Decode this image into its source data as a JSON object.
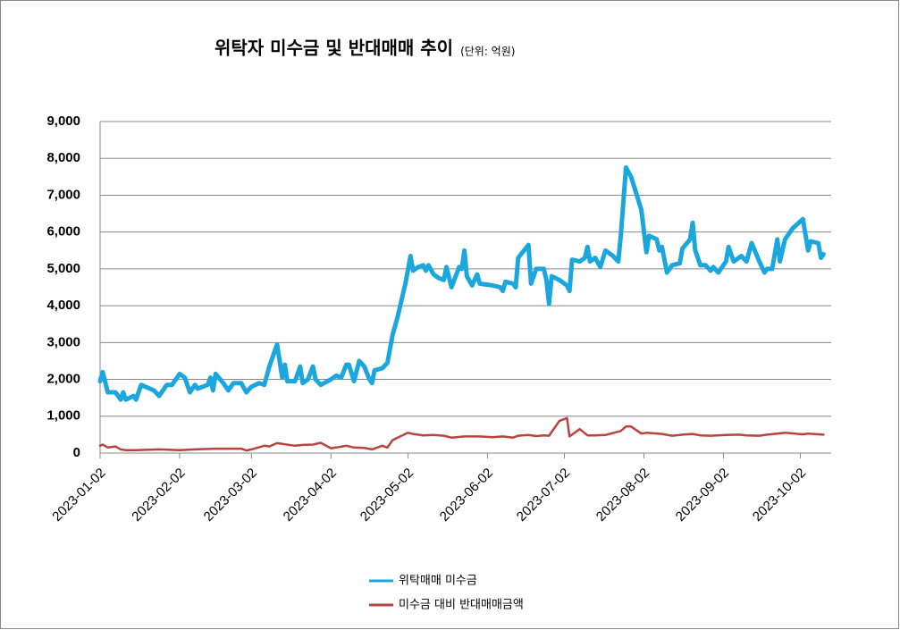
{
  "chart_data": {
    "type": "line",
    "title": "위탁자 미수금 및 반대매매 추이",
    "subtitle": "(단위: 억원)",
    "xlim": [
      "2023-01-02",
      "2023-10-14"
    ],
    "xticks": [
      "2023-01-02",
      "2023-02-02",
      "2023-03-02",
      "2023-04-02",
      "2023-05-02",
      "2023-06-02",
      "2023-07-02",
      "2023-08-02",
      "2023-09-02",
      "2023-10-02"
    ],
    "ylim": [
      0,
      9000
    ],
    "yticks": [
      0,
      {
        "value": 1000,
        "label": "1,000"
      },
      {
        "value": 2000,
        "label": "2,000"
      },
      {
        "value": 3000,
        "label": "3,000"
      },
      {
        "value": 4000,
        "label": "4,000"
      },
      {
        "value": 5000,
        "label": "5,000"
      },
      {
        "value": 6000,
        "label": "6,000"
      },
      {
        "value": 7000,
        "label": "7,000"
      },
      {
        "value": 8000,
        "label": "8,000"
      },
      {
        "value": 9000,
        "label": "9,000"
      }
    ],
    "grid": true,
    "legend": "bottom",
    "series": [
      {
        "name": "위탁매매 미수금",
        "color": "#1ba7de",
        "width": 5,
        "x": [
          "2023-01-02",
          "2023-01-03",
          "2023-01-05",
          "2023-01-08",
          "2023-01-10",
          "2023-01-11",
          "2023-01-12",
          "2023-01-15",
          "2023-01-16",
          "2023-01-18",
          "2023-01-23",
          "2023-01-25",
          "2023-01-28",
          "2023-01-30",
          "2023-02-02",
          "2023-02-04",
          "2023-02-06",
          "2023-02-08",
          "2023-02-09",
          "2023-02-13",
          "2023-02-14",
          "2023-02-15",
          "2023-02-16",
          "2023-02-19",
          "2023-02-21",
          "2023-02-23",
          "2023-02-26",
          "2023-02-28",
          "2023-03-02",
          "2023-03-05",
          "2023-03-07",
          "2023-03-09",
          "2023-03-12",
          "2023-03-14",
          "2023-03-15",
          "2023-03-16",
          "2023-03-19",
          "2023-03-21",
          "2023-03-22",
          "2023-03-24",
          "2023-03-26",
          "2023-03-27",
          "2023-03-29",
          "2023-04-02",
          "2023-04-04",
          "2023-04-06",
          "2023-04-08",
          "2023-04-09",
          "2023-04-11",
          "2023-04-13",
          "2023-04-15",
          "2023-04-17",
          "2023-04-18",
          "2023-04-19",
          "2023-04-22",
          "2023-04-24",
          "2023-04-26",
          "2023-04-28",
          "2023-04-30",
          "2023-05-01",
          "2023-05-03",
          "2023-05-04",
          "2023-05-06",
          "2023-05-08",
          "2023-05-09",
          "2023-05-10",
          "2023-05-12",
          "2023-05-14",
          "2023-05-16",
          "2023-05-17",
          "2023-05-19",
          "2023-05-22",
          "2023-05-23",
          "2023-05-24",
          "2023-05-25",
          "2023-05-27",
          "2023-05-29",
          "2023-05-30",
          "2023-06-04",
          "2023-06-07",
          "2023-06-08",
          "2023-06-09",
          "2023-06-12",
          "2023-06-13",
          "2023-06-14",
          "2023-06-18",
          "2023-06-19",
          "2023-06-21",
          "2023-06-24",
          "2023-06-25",
          "2023-06-26",
          "2023-06-27",
          "2023-06-30",
          "2023-07-03",
          "2023-07-04",
          "2023-07-05",
          "2023-07-08",
          "2023-07-10",
          "2023-07-11",
          "2023-07-12",
          "2023-07-14",
          "2023-07-16",
          "2023-07-18",
          "2023-07-21",
          "2023-07-23",
          "2023-07-24",
          "2023-07-26",
          "2023-07-28",
          "2023-08-01",
          "2023-08-03",
          "2023-08-04",
          "2023-08-07",
          "2023-08-08",
          "2023-08-09",
          "2023-08-11",
          "2023-08-13",
          "2023-08-16",
          "2023-08-17",
          "2023-08-20",
          "2023-08-21",
          "2023-08-22",
          "2023-08-24",
          "2023-08-26",
          "2023-08-28",
          "2023-08-29",
          "2023-08-31",
          "2023-09-03",
          "2023-09-04",
          "2023-09-06",
          "2023-09-08",
          "2023-09-09",
          "2023-09-11",
          "2023-09-13",
          "2023-09-16",
          "2023-09-18",
          "2023-09-19",
          "2023-09-21",
          "2023-09-23",
          "2023-09-24",
          "2023-09-26",
          "2023-09-29",
          "2023-10-03",
          "2023-10-05",
          "2023-10-06",
          "2023-10-09",
          "2023-10-10",
          "2023-10-11"
        ],
        "values": [
          1950,
          2200,
          1650,
          1650,
          1450,
          1650,
          1450,
          1550,
          1450,
          1850,
          1700,
          1550,
          1850,
          1850,
          2150,
          2050,
          1650,
          1850,
          1750,
          1850,
          2050,
          1700,
          2150,
          1900,
          1700,
          1900,
          1900,
          1650,
          1800,
          1900,
          1850,
          2350,
          2950,
          2050,
          2400,
          1950,
          1950,
          2350,
          1900,
          2000,
          2350,
          2000,
          1850,
          2000,
          2100,
          2050,
          2400,
          2400,
          1950,
          2500,
          2350,
          2000,
          1900,
          2250,
          2300,
          2450,
          3200,
          3700,
          4300,
          4600,
          5350,
          4950,
          5050,
          5100,
          4950,
          5100,
          4850,
          4750,
          4700,
          5050,
          4500,
          5050,
          5000,
          5500,
          4800,
          4550,
          4850,
          4600,
          4550,
          4500,
          4400,
          4650,
          4600,
          4500,
          5300,
          5650,
          4600,
          5000,
          5000,
          4700,
          4050,
          4800,
          4700,
          4550,
          4400,
          5250,
          5200,
          5300,
          5600,
          5200,
          5300,
          5050,
          5500,
          5350,
          5200,
          5900,
          7750,
          7500,
          6600,
          5450,
          5900,
          5800,
          5500,
          5600,
          4900,
          5100,
          5150,
          5550,
          5800,
          6250,
          5500,
          5100,
          5100,
          4950,
          5050,
          4900,
          5200,
          5600,
          5200,
          5300,
          5350,
          5200,
          5700,
          5200,
          4900,
          5000,
          5000,
          5800,
          5200,
          5800,
          6100,
          6350,
          5500,
          5750,
          5700,
          5300,
          5400
        ]
      },
      {
        "name": "미수금 대비 반대매매금액",
        "color": "#b8443f",
        "width": 2.5,
        "x": [
          "2023-01-02",
          "2023-01-03",
          "2023-01-05",
          "2023-01-08",
          "2023-01-10",
          "2023-01-12",
          "2023-01-16",
          "2023-01-25",
          "2023-02-02",
          "2023-02-08",
          "2023-02-16",
          "2023-02-26",
          "2023-02-28",
          "2023-03-02",
          "2023-03-07",
          "2023-03-09",
          "2023-03-12",
          "2023-03-14",
          "2023-03-19",
          "2023-03-22",
          "2023-03-26",
          "2023-03-29",
          "2023-04-02",
          "2023-04-04",
          "2023-04-08",
          "2023-04-11",
          "2023-04-15",
          "2023-04-18",
          "2023-04-22",
          "2023-04-24",
          "2023-04-26",
          "2023-04-28",
          "2023-05-02",
          "2023-05-04",
          "2023-05-08",
          "2023-05-12",
          "2023-05-16",
          "2023-05-19",
          "2023-05-24",
          "2023-05-30",
          "2023-06-04",
          "2023-06-08",
          "2023-06-12",
          "2023-06-14",
          "2023-06-18",
          "2023-06-21",
          "2023-06-24",
          "2023-06-26",
          "2023-06-30",
          "2023-07-03",
          "2023-07-04",
          "2023-07-08",
          "2023-07-11",
          "2023-07-14",
          "2023-07-18",
          "2023-07-24",
          "2023-07-26",
          "2023-07-28",
          "2023-08-01",
          "2023-08-03",
          "2023-08-09",
          "2023-08-13",
          "2023-08-17",
          "2023-08-21",
          "2023-08-24",
          "2023-08-28",
          "2023-09-03",
          "2023-09-08",
          "2023-09-11",
          "2023-09-16",
          "2023-09-19",
          "2023-09-23",
          "2023-09-26",
          "2023-10-03",
          "2023-10-05",
          "2023-10-09",
          "2023-10-11"
        ],
        "values": [
          200,
          230,
          150,
          180,
          100,
          80,
          80,
          100,
          80,
          100,
          120,
          120,
          70,
          100,
          200,
          180,
          270,
          250,
          200,
          220,
          230,
          280,
          130,
          150,
          200,
          150,
          140,
          100,
          200,
          150,
          350,
          420,
          550,
          520,
          480,
          490,
          470,
          420,
          450,
          450,
          430,
          450,
          420,
          470,
          490,
          460,
          480,
          470,
          870,
          950,
          450,
          650,
          480,
          480,
          490,
          600,
          720,
          720,
          530,
          550,
          520,
          470,
          500,
          520,
          480,
          470,
          490,
          500,
          480,
          470,
          500,
          530,
          550,
          510,
          530,
          510,
          500
        ]
      }
    ]
  }
}
